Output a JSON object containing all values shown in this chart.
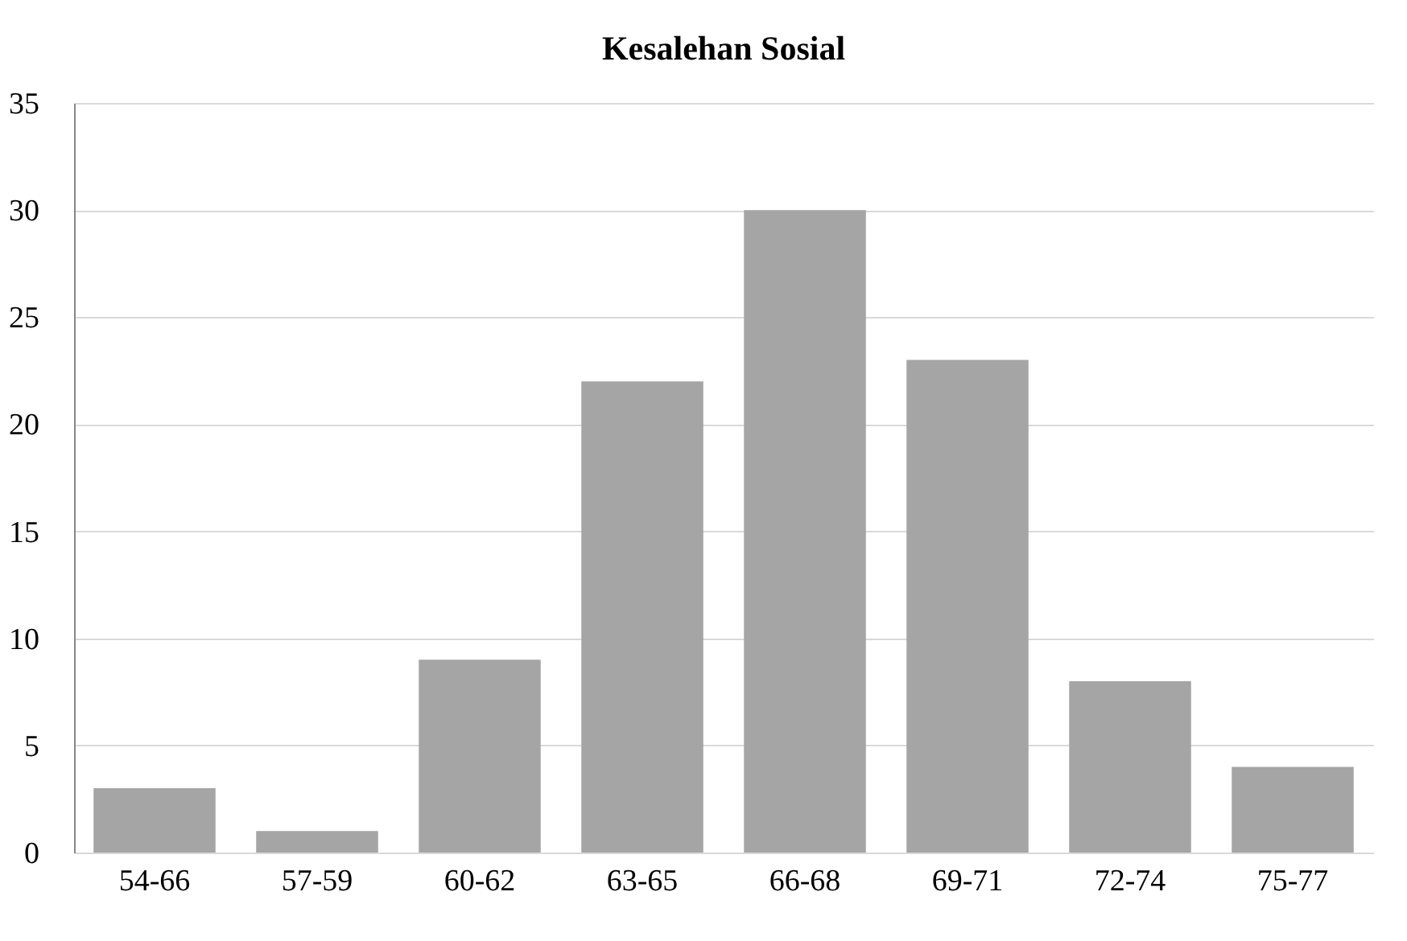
{
  "chart_data": {
    "type": "bar",
    "title": "Kesalehan Sosial",
    "categories": [
      "54-66",
      "57-59",
      "60-62",
      "63-65",
      "66-68",
      "69-71",
      "72-74",
      "75-77"
    ],
    "values": [
      3,
      1,
      9,
      22,
      30,
      23,
      8,
      4
    ],
    "color": "#a5a5a5",
    "ylim": [
      0,
      35
    ],
    "yticks": [
      0,
      5,
      10,
      15,
      20,
      25,
      30,
      35
    ],
    "grid": "y"
  }
}
